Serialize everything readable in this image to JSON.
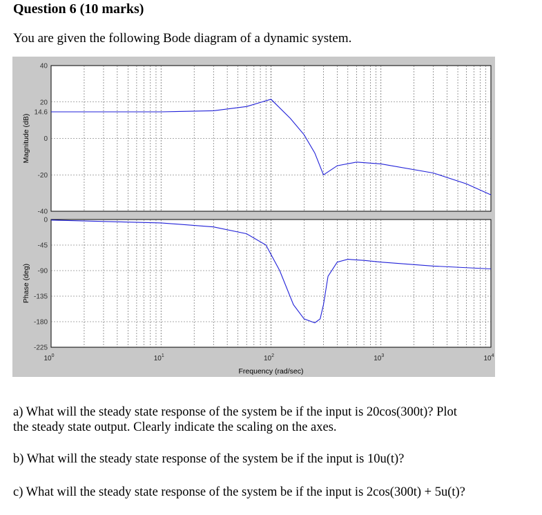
{
  "question": {
    "heading": "Question 6 (10 marks)",
    "intro": "You are given the following Bode diagram of a dynamic system."
  },
  "parts": [
    {
      "label": "a)",
      "line1": "What will the steady state response of the system be if the input is 20cos(300t)? Plot",
      "line2": "the steady state output. Clearly indicate the scaling on the axes."
    },
    {
      "label": "b)",
      "line1": "What will the steady state response of the system be if the input is 10u(t)?"
    },
    {
      "label": "c)",
      "line1": "What will the steady state response of the system be if the input is 2cos(300t) + 5u(t)?"
    }
  ],
  "chart_data": [
    {
      "type": "line",
      "ylabel": "Magnitude (dB)",
      "xscale": "log",
      "xlim": [
        1,
        10000
      ],
      "ylim": [
        -40,
        40
      ],
      "y_ticks": [
        40,
        20,
        0,
        -20,
        -40
      ],
      "extra_tick_label": "14.6",
      "grid": true,
      "x": [
        1,
        10,
        30,
        60,
        100,
        150,
        200,
        250,
        300,
        400,
        600,
        1000,
        3000,
        6000,
        10000
      ],
      "values": [
        14.6,
        14.6,
        15.2,
        17.5,
        21.5,
        11,
        2,
        -8,
        -20,
        -15,
        -13,
        -14,
        -19,
        -25,
        -31
      ]
    },
    {
      "type": "line",
      "ylabel": "Phase (deg)",
      "xlabel": "Frequency (rad/sec)",
      "xscale": "log",
      "xlim": [
        1,
        10000
      ],
      "ylim": [
        -225,
        0
      ],
      "y_ticks": [
        0,
        -45,
        -90,
        -135,
        -180,
        -225
      ],
      "x_tick_labels": [
        "10^0",
        "10^1",
        "10^2",
        "10^3",
        "10^4"
      ],
      "grid": true,
      "x": [
        1,
        10,
        30,
        60,
        90,
        120,
        160,
        200,
        250,
        280,
        300,
        330,
        400,
        500,
        700,
        1000,
        3000,
        10000
      ],
      "values": [
        -1,
        -6,
        -13,
        -25,
        -45,
        -90,
        -150,
        -175,
        -182,
        -175,
        -150,
        -100,
        -75,
        -70,
        -72,
        -75,
        -82,
        -87
      ]
    }
  ]
}
